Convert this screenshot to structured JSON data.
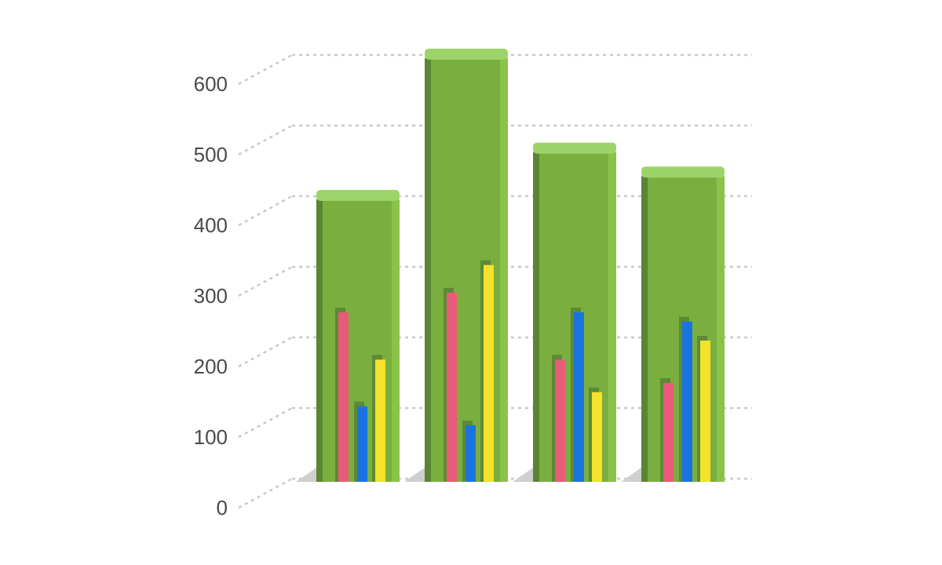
{
  "chart_data": {
    "type": "bar",
    "categories": [
      "",
      "",
      "",
      ""
    ],
    "main_values": [
      400,
      600,
      467,
      433
    ],
    "series": [
      {
        "color": "#e85c7a",
        "values": [
          240,
          268,
          173,
          140
        ]
      },
      {
        "color": "#1a74e0",
        "values": [
          107,
          80,
          240,
          227
        ]
      },
      {
        "color": "#f5e22a",
        "values": [
          173,
          307,
          127,
          200
        ]
      }
    ],
    "y_ticks": [
      "0",
      "100",
      "200",
      "300",
      "400",
      "500",
      "600"
    ],
    "ylim": [
      0,
      600
    ],
    "grid": true,
    "colors": {
      "main_front": "#7aaf40",
      "main_side": "#5a8533",
      "main_top": "#9dd46a",
      "main_highlight": "#8bc34a",
      "inner_shadow": "#5c8a35",
      "floor_shadow": "#cfcfcf",
      "gridline": "#c8c8c8"
    }
  }
}
